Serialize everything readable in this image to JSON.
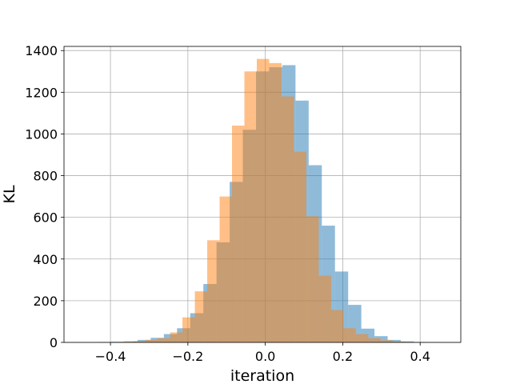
{
  "chart_data": {
    "type": "bar",
    "subtype": "overlaid histogram",
    "xlabel": "iteration",
    "ylabel": "KL",
    "xlim": [
      -0.52,
      0.505
    ],
    "ylim": [
      0,
      1420
    ],
    "xticks": [
      -0.4,
      -0.2,
      0.0,
      0.2,
      0.4
    ],
    "xtick_labels": [
      "−0.4",
      "−0.2",
      "0.0",
      "0.2",
      "0.4"
    ],
    "yticks": [
      0,
      200,
      400,
      600,
      800,
      1000,
      1200,
      1400
    ],
    "ytick_labels": [
      "0",
      "200",
      "400",
      "600",
      "800",
      "1000",
      "1200",
      "1400"
    ],
    "grid": true,
    "legend": "none",
    "series": [
      {
        "color": "#1f77b4",
        "opacity": 0.5,
        "bin_edges": [
          -0.432,
          -0.398,
          -0.364,
          -0.33,
          -0.296,
          -0.262,
          -0.228,
          -0.194,
          -0.16,
          -0.126,
          -0.092,
          -0.058,
          -0.024,
          0.01,
          0.044,
          0.078,
          0.112,
          0.146,
          0.18,
          0.214,
          0.248,
          0.282,
          0.316,
          0.35,
          0.384,
          0.418,
          0.452
        ],
        "counts": [
          2,
          3,
          5,
          12,
          22,
          40,
          68,
          140,
          280,
          480,
          770,
          1020,
          1300,
          1320,
          1330,
          1160,
          850,
          560,
          340,
          180,
          66,
          30,
          12,
          5,
          2,
          1
        ]
      },
      {
        "color": "#ff7f0e",
        "opacity": 0.5,
        "bin_edges": [
          -0.406,
          -0.374,
          -0.342,
          -0.31,
          -0.278,
          -0.246,
          -0.214,
          -0.182,
          -0.15,
          -0.118,
          -0.086,
          -0.054,
          -0.022,
          0.01,
          0.042,
          0.074,
          0.106,
          0.138,
          0.17,
          0.202,
          0.234,
          0.266,
          0.298,
          0.33,
          0.362,
          0.394
        ],
        "counts": [
          1,
          3,
          6,
          12,
          20,
          48,
          120,
          245,
          490,
          700,
          1040,
          1300,
          1360,
          1340,
          1180,
          915,
          605,
          320,
          155,
          68,
          40,
          20,
          10,
          4,
          2
        ]
      }
    ]
  }
}
